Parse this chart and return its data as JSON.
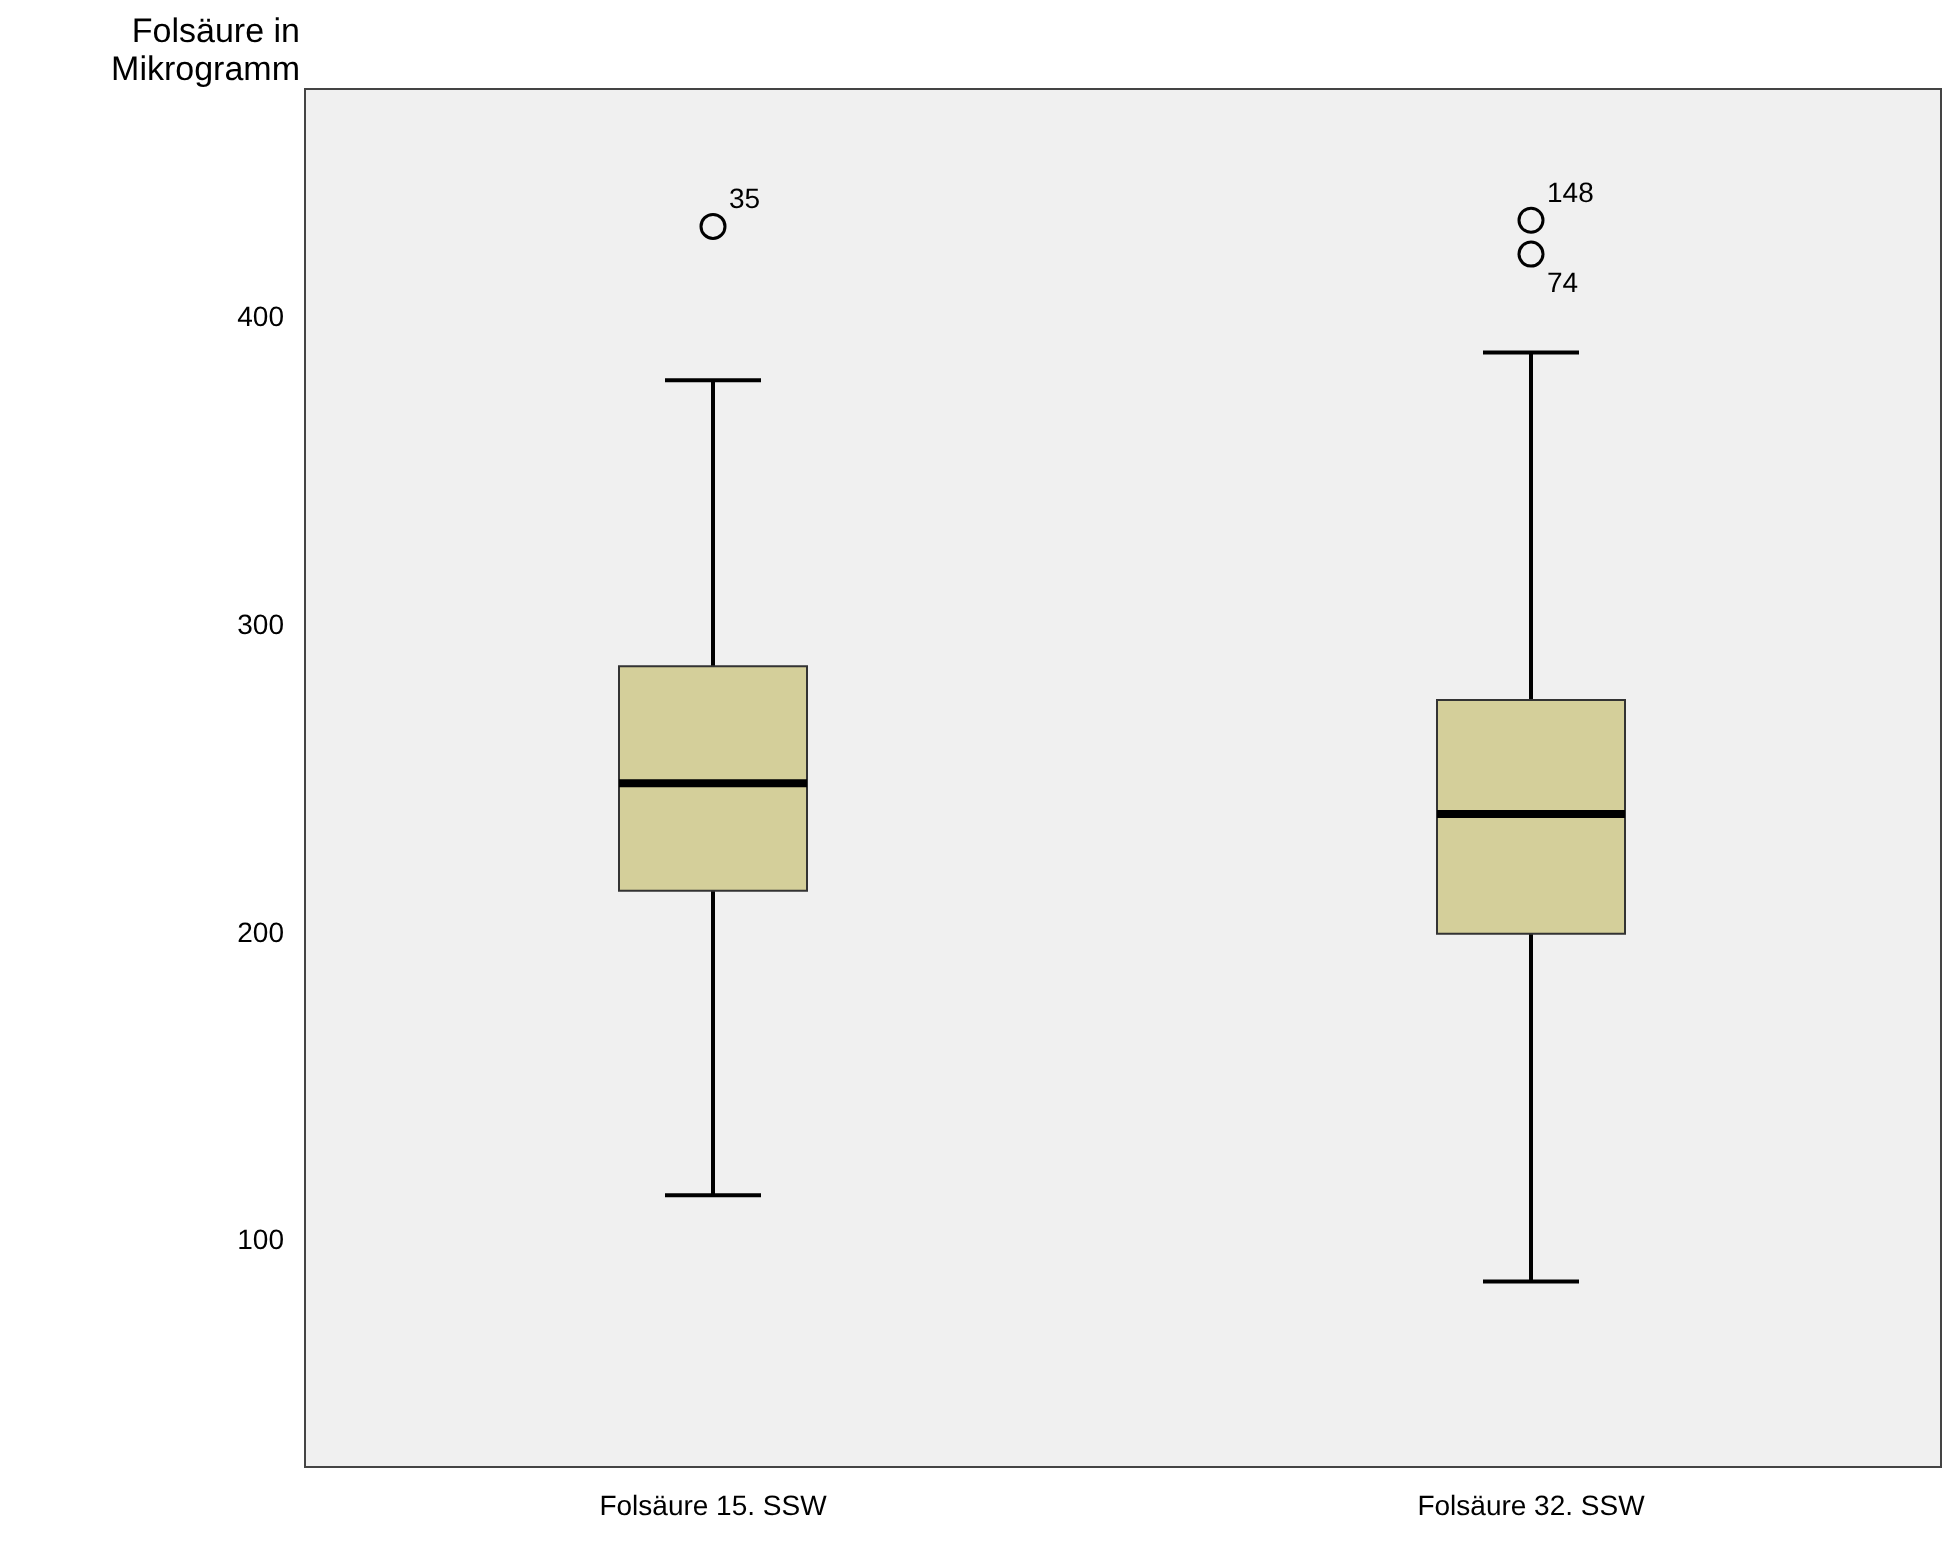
{
  "chart_data": {
    "type": "box",
    "ylabel": "Folsäure in Mikrogramm",
    "categories": [
      "Folsäure 15. SSW",
      "Folsäure 32. SSW"
    ],
    "color": "#d4cf9a",
    "boxes": [
      {
        "low": 115,
        "q1": 214,
        "median": 249,
        "q3": 287,
        "high": 380,
        "outliers": [
          430
        ]
      },
      {
        "low": 87,
        "q1": 200,
        "median": 239,
        "q3": 276,
        "high": 389,
        "outliers": [
          432,
          421
        ]
      }
    ],
    "ylim": [
      27,
      475
    ],
    "yticks": [
      100,
      200,
      300,
      400
    ],
    "grid": false,
    "legend": false,
    "annotations": [
      "35",
      "148",
      "74"
    ]
  }
}
